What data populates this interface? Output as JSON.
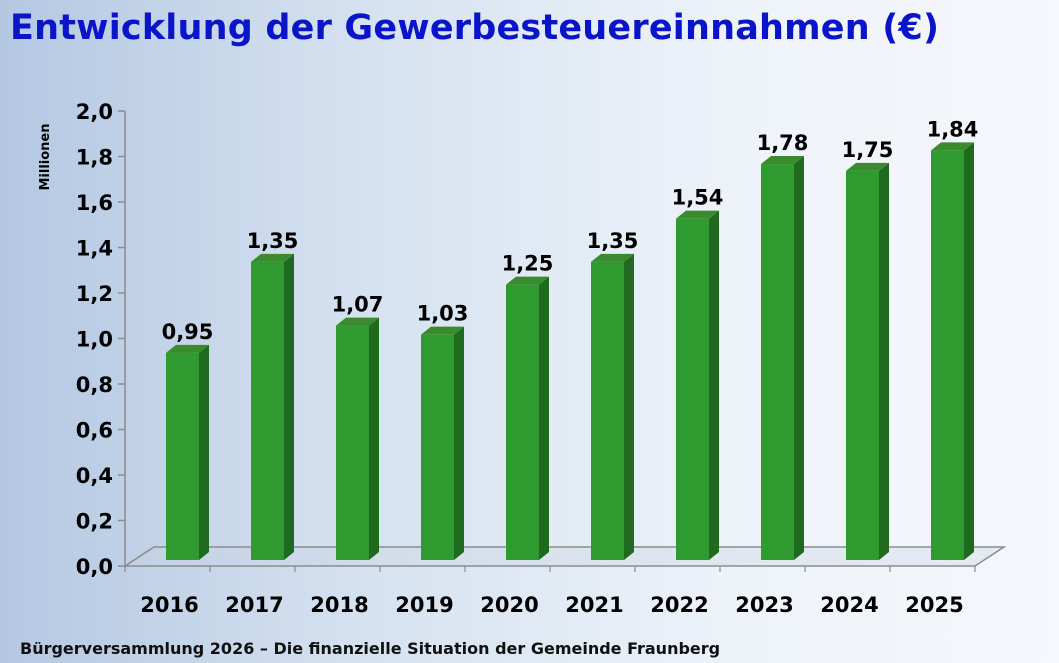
{
  "title": "Entwicklung der Gewerbesteuereinnahmen (€)",
  "footer": "Bürgerversammlung 2026 – Die finanzielle Situation der Gemeinde Fraunberg",
  "colors": {
    "title": "#0a14c8",
    "bar_front": "#2f9a2f",
    "bar_side": "#1f6a1f",
    "bar_top": "#3a8a2e",
    "axis": "#8c8c8c"
  },
  "chart_data": {
    "type": "bar",
    "title": "Entwicklung der Gewerbesteuereinnahmen (€)",
    "xlabel": "",
    "ylabel": "Millionen",
    "categories": [
      "2016",
      "2017",
      "2018",
      "2019",
      "2020",
      "2021",
      "2022",
      "2023",
      "2024",
      "2025"
    ],
    "values": [
      0.95,
      1.35,
      1.07,
      1.03,
      1.25,
      1.35,
      1.54,
      1.78,
      1.75,
      1.84
    ],
    "value_labels": [
      "0,95",
      "1,35",
      "1,07",
      "1,03",
      "1,25",
      "1,35",
      "1,54",
      "1,78",
      "1,75",
      "1,84"
    ],
    "ylim": [
      0,
      2.0
    ],
    "yticks": [
      0,
      0.2,
      0.4,
      0.6,
      0.8,
      1.0,
      1.2,
      1.4,
      1.6,
      1.8,
      2.0
    ],
    "ytick_labels": [
      "0,0",
      "0,2",
      "0,4",
      "0,6",
      "0,8",
      "1,0",
      "1,2",
      "1,4",
      "1,6",
      "1,8",
      "2,0"
    ],
    "grid": false,
    "legend": "none"
  }
}
